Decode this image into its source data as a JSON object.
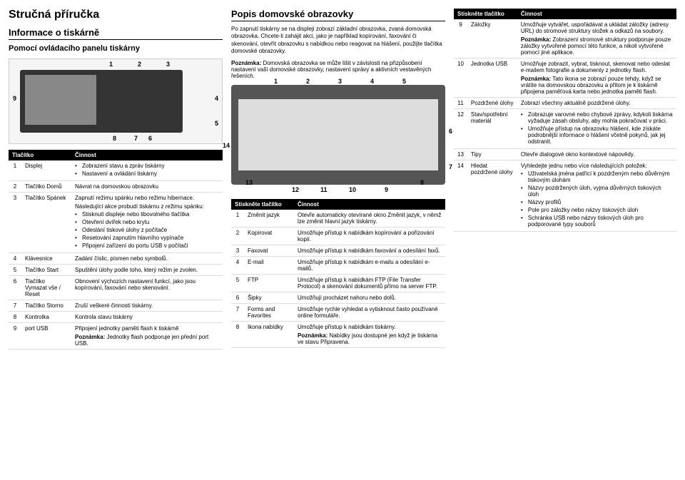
{
  "col1": {
    "title": "Stručná příručka",
    "section1_heading": "Informace o tiskárně",
    "section1_sub": "Pomocí ovládacího panelu tiskárny",
    "table1_h1": "Tlačítko",
    "table1_h2": "Činnost",
    "rows1": [
      {
        "n": "1",
        "lbl": "Displej",
        "desc_items": [
          "Zobrazení stavu a zpráv tiskárny",
          "Nastavení a ovládání tiskárny"
        ]
      },
      {
        "n": "2",
        "lbl": "Tlačítko Domů",
        "desc": "Návrat na domovskou obrazovku"
      },
      {
        "n": "3",
        "lbl": "Tlačítko Spánek",
        "desc": "Zapnutí režimu spánku nebo režimu hibernace.",
        "extra": "Následující akce probudí tiskárnu z režimu spánku:",
        "items": [
          "Stisknutí displeje nebo libovolného tlačítka",
          "Otevření dvířek nebo krytu",
          "Odeslání tiskové úlohy z počítače",
          "Resetování zapnutím hlavního vypínače",
          "Připojení zařízení do portu USB v počítači"
        ]
      },
      {
        "n": "4",
        "lbl": "Klávesnice",
        "desc": "Zadání číslic, písmen nebo symbolů."
      },
      {
        "n": "5",
        "lbl": "Tlačítko Start",
        "desc": "Spuštění úlohy podle toho, který režim je zvolen."
      },
      {
        "n": "6",
        "lbl": "Tlačítko Vymazat vše / Reset",
        "desc": "Obnovení výchozích nastavení funkcí, jako jsou kopírování, faxování nebo skenování."
      },
      {
        "n": "7",
        "lbl": "Tlačítko Storno",
        "desc": "Zruší veškeré činnosti tiskárny."
      },
      {
        "n": "8",
        "lbl": "Kontrolka",
        "desc": "Kontrola stavu tiskárny"
      },
      {
        "n": "9",
        "lbl": "port USB",
        "desc": "Připojení jednotky paměti flash k tiskárně",
        "note": "Poznámka: Jednotky flash podporuje jen přední port USB."
      }
    ]
  },
  "col2": {
    "heading": "Popis domovské obrazovky",
    "desc1": "Po zapnutí tiskárny se na displeji zobrazí základní obrazovka, zvaná domovská obrazovka. Chcete-li zahájit akci, jako je například kopírování, faxování či skenování, otevřít obrazovku s nabídkou nebo reagovat na hlášení, použijte tlačítka domovské obrazovky.",
    "note1_label": "Poznámka:",
    "note1": " Domovská obrazovka se může lišit v závislosti na přizpůsobení nastavení vaší domovské obrazovky, nastavení správy a aktivních vestavěných řešeních.",
    "table2_h1": "Stiskněte tlačítko",
    "table2_h2": "Činnost",
    "rows2": [
      {
        "n": "1",
        "lbl": "Změnit jazyk",
        "desc": "Otevře automaticky otevírané okno Změnit jazyk, v němž lze změnit hlavní jazyk tiskárny."
      },
      {
        "n": "2",
        "lbl": "Kopírovat",
        "desc": "Umožňuje přístup k nabídkám kopírování a pořizování kopií."
      },
      {
        "n": "3",
        "lbl": "Faxovat",
        "desc": "Umožňuje přístup k nabídkám faxování a odesílání faxů."
      },
      {
        "n": "4",
        "lbl": "E-mail",
        "desc": "Umožňuje přístup k nabídkám e-mailu a odesílání e-mailů."
      },
      {
        "n": "5",
        "lbl": "FTP",
        "desc": "Umožňuje přístup k nabídkám FTP (File Transfer Protocol) a skenování dokumentů přímo na server FTP."
      },
      {
        "n": "6",
        "lbl": "Šipky",
        "desc": "Umožňují procházet nahoru nebo dolů."
      },
      {
        "n": "7",
        "lbl": "Forms and Favorites",
        "desc": "Umožňuje rychle vyhledat a vytisknout často používané online formuláře."
      },
      {
        "n": "8",
        "lbl": "Ikona nabídky",
        "desc": "Umožňuje přístup k nabídkám tiskárny.",
        "note": "Poznámka: Nabídky jsou dostupné jen když je tiskárna ve stavu Připravena."
      }
    ]
  },
  "col3": {
    "table3_h1": "Stiskněte tlačítko",
    "table3_h2": "Činnost",
    "rows3": [
      {
        "n": "9",
        "lbl": "Záložky",
        "desc": "Umožňuje vytvářet, uspořádávat a ukládat záložky (adresy URL) do stromové struktury složek a odkazů na soubory.",
        "note": "Poznámka: Zobrazení stromové struktury podporuje pouze záložky vytvořené pomocí této funkce, a nikoli vytvořené pomocí jiné aplikace."
      },
      {
        "n": "10",
        "lbl": "Jednotka USB",
        "desc": "Umožňuje zobrazit, vybrat, tisknout, skenovat nebo odeslat e-mailem fotografie a dokumenty z jednotky flash.",
        "note": "Poznámka: Tato ikona se zobrazí pouze tehdy, když se vrátíte na domovskou obrazovku a přitom je k tiskárně připojena paměťová karta nebo jednotka paměti flash."
      },
      {
        "n": "11",
        "lbl": "Pozdržené úlohy",
        "desc": "Zobrazí všechny aktuálně pozdržené úlohy."
      },
      {
        "n": "12",
        "lbl": "Stav/spotřební materiál",
        "desc_items": [
          "Zobrazuje varovné nebo chybové zprávy, kdykoli tiskárna vyžaduje zásah obsluhy, aby mohla pokračovat v práci.",
          "Umožňuje přístup na obrazovku hlášení, kde získáte podrobnější informace o hlášení včetně pokynů, jak jej odstranit."
        ]
      },
      {
        "n": "13",
        "lbl": "Tipy",
        "desc": "Otevře dialogové okno kontextové nápovědy."
      },
      {
        "n": "14",
        "lbl": "Hledat pozdržené úlohy",
        "desc": "Vyhledejte jednu nebo více následujících položek:",
        "items": [
          "Uživatelská jména patřící k pozdrženým nebo důvěrným tiskovým úlohám",
          "Názvy pozdržených úloh, vyjma důvěrných tiskových úloh",
          "Názvy profilů",
          "Pole pro záložky nebo názvy tiskových úloh",
          "Schránka USB nebo názvy tiskových úloh pro podporované typy souborů"
        ]
      }
    ]
  }
}
